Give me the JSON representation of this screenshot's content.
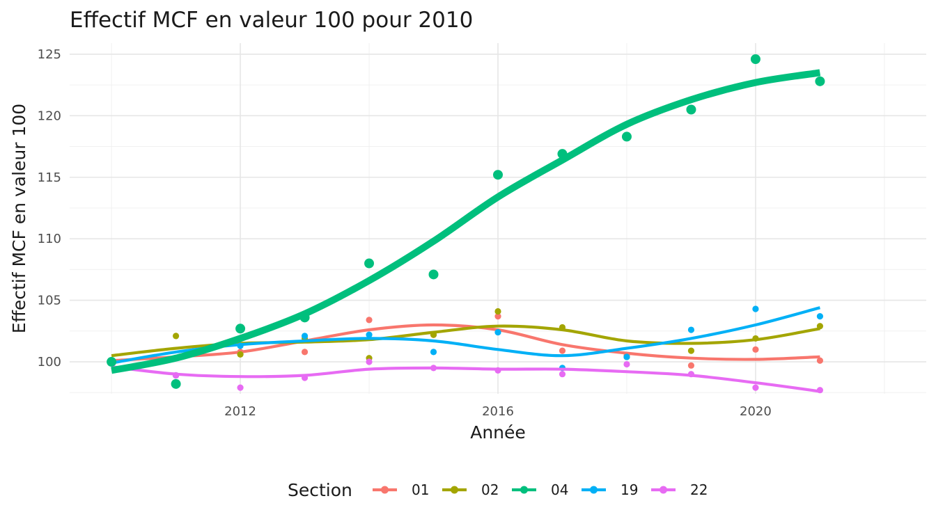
{
  "chart_data": {
    "type": "line",
    "title": "Effectif MCF en valeur 100 pour 2010",
    "xlabel": "Année",
    "ylabel": "Effectif MCF en valeur 100",
    "x": [
      2010,
      2011,
      2012,
      2013,
      2014,
      2015,
      2016,
      2017,
      2018,
      2019,
      2020,
      2021
    ],
    "xlim": [
      2009.35,
      2022.65
    ],
    "ylim": [
      97.4,
      125.9
    ],
    "x_ticks": [
      2012,
      2016,
      2020
    ],
    "x_tick_labels": [
      "2012",
      "2016",
      "2020"
    ],
    "y_ticks": [
      100,
      105,
      110,
      115,
      120,
      125
    ],
    "y_tick_labels": [
      "100",
      "105",
      "110",
      "115",
      "120",
      "125"
    ],
    "grid": true,
    "legend": {
      "title": "Section",
      "position": "bottom"
    },
    "series": [
      {
        "name": "01",
        "color": "#F8766D",
        "points": [
          100.0,
          98.9,
          100.8,
          100.8,
          103.4,
          102.2,
          103.7,
          100.9,
          100.5,
          99.7,
          101.0,
          100.1
        ],
        "smooth": [
          100.1,
          100.4,
          100.8,
          101.7,
          102.6,
          103.0,
          102.6,
          101.4,
          100.7,
          100.3,
          100.2,
          100.4
        ]
      },
      {
        "name": "02",
        "color": "#A3A500",
        "points": [
          100.0,
          102.1,
          100.6,
          101.9,
          100.3,
          102.2,
          104.1,
          102.8,
          100.4,
          100.9,
          101.9,
          102.9
        ],
        "smooth": [
          100.5,
          101.1,
          101.5,
          101.6,
          101.8,
          102.4,
          102.9,
          102.6,
          101.7,
          101.5,
          101.8,
          102.7
        ]
      },
      {
        "name": "04",
        "color": "#00BF7D",
        "points": [
          100.0,
          98.2,
          102.7,
          103.6,
          108.0,
          107.1,
          115.2,
          116.9,
          118.3,
          120.5,
          124.6,
          122.8
        ],
        "smooth": [
          99.3,
          100.3,
          101.9,
          103.9,
          106.6,
          109.8,
          113.4,
          116.4,
          119.3,
          121.3,
          122.7,
          123.5
        ]
      },
      {
        "name": "19",
        "color": "#00B0F6",
        "points": [
          100.0,
          98.9,
          101.3,
          102.1,
          102.2,
          100.8,
          102.4,
          99.5,
          100.4,
          102.6,
          104.3,
          103.7
        ],
        "smooth": [
          99.9,
          100.8,
          101.4,
          101.7,
          101.9,
          101.7,
          101.0,
          100.5,
          101.1,
          101.9,
          103.0,
          104.4
        ]
      },
      {
        "name": "22",
        "color": "#E76BF3",
        "points": [
          100.0,
          98.9,
          97.9,
          98.7,
          100.0,
          99.5,
          99.3,
          99.0,
          99.8,
          99.0,
          97.9,
          97.7
        ],
        "smooth": [
          99.6,
          99.0,
          98.8,
          98.9,
          99.4,
          99.5,
          99.4,
          99.4,
          99.2,
          98.9,
          98.3,
          97.6
        ]
      }
    ]
  }
}
